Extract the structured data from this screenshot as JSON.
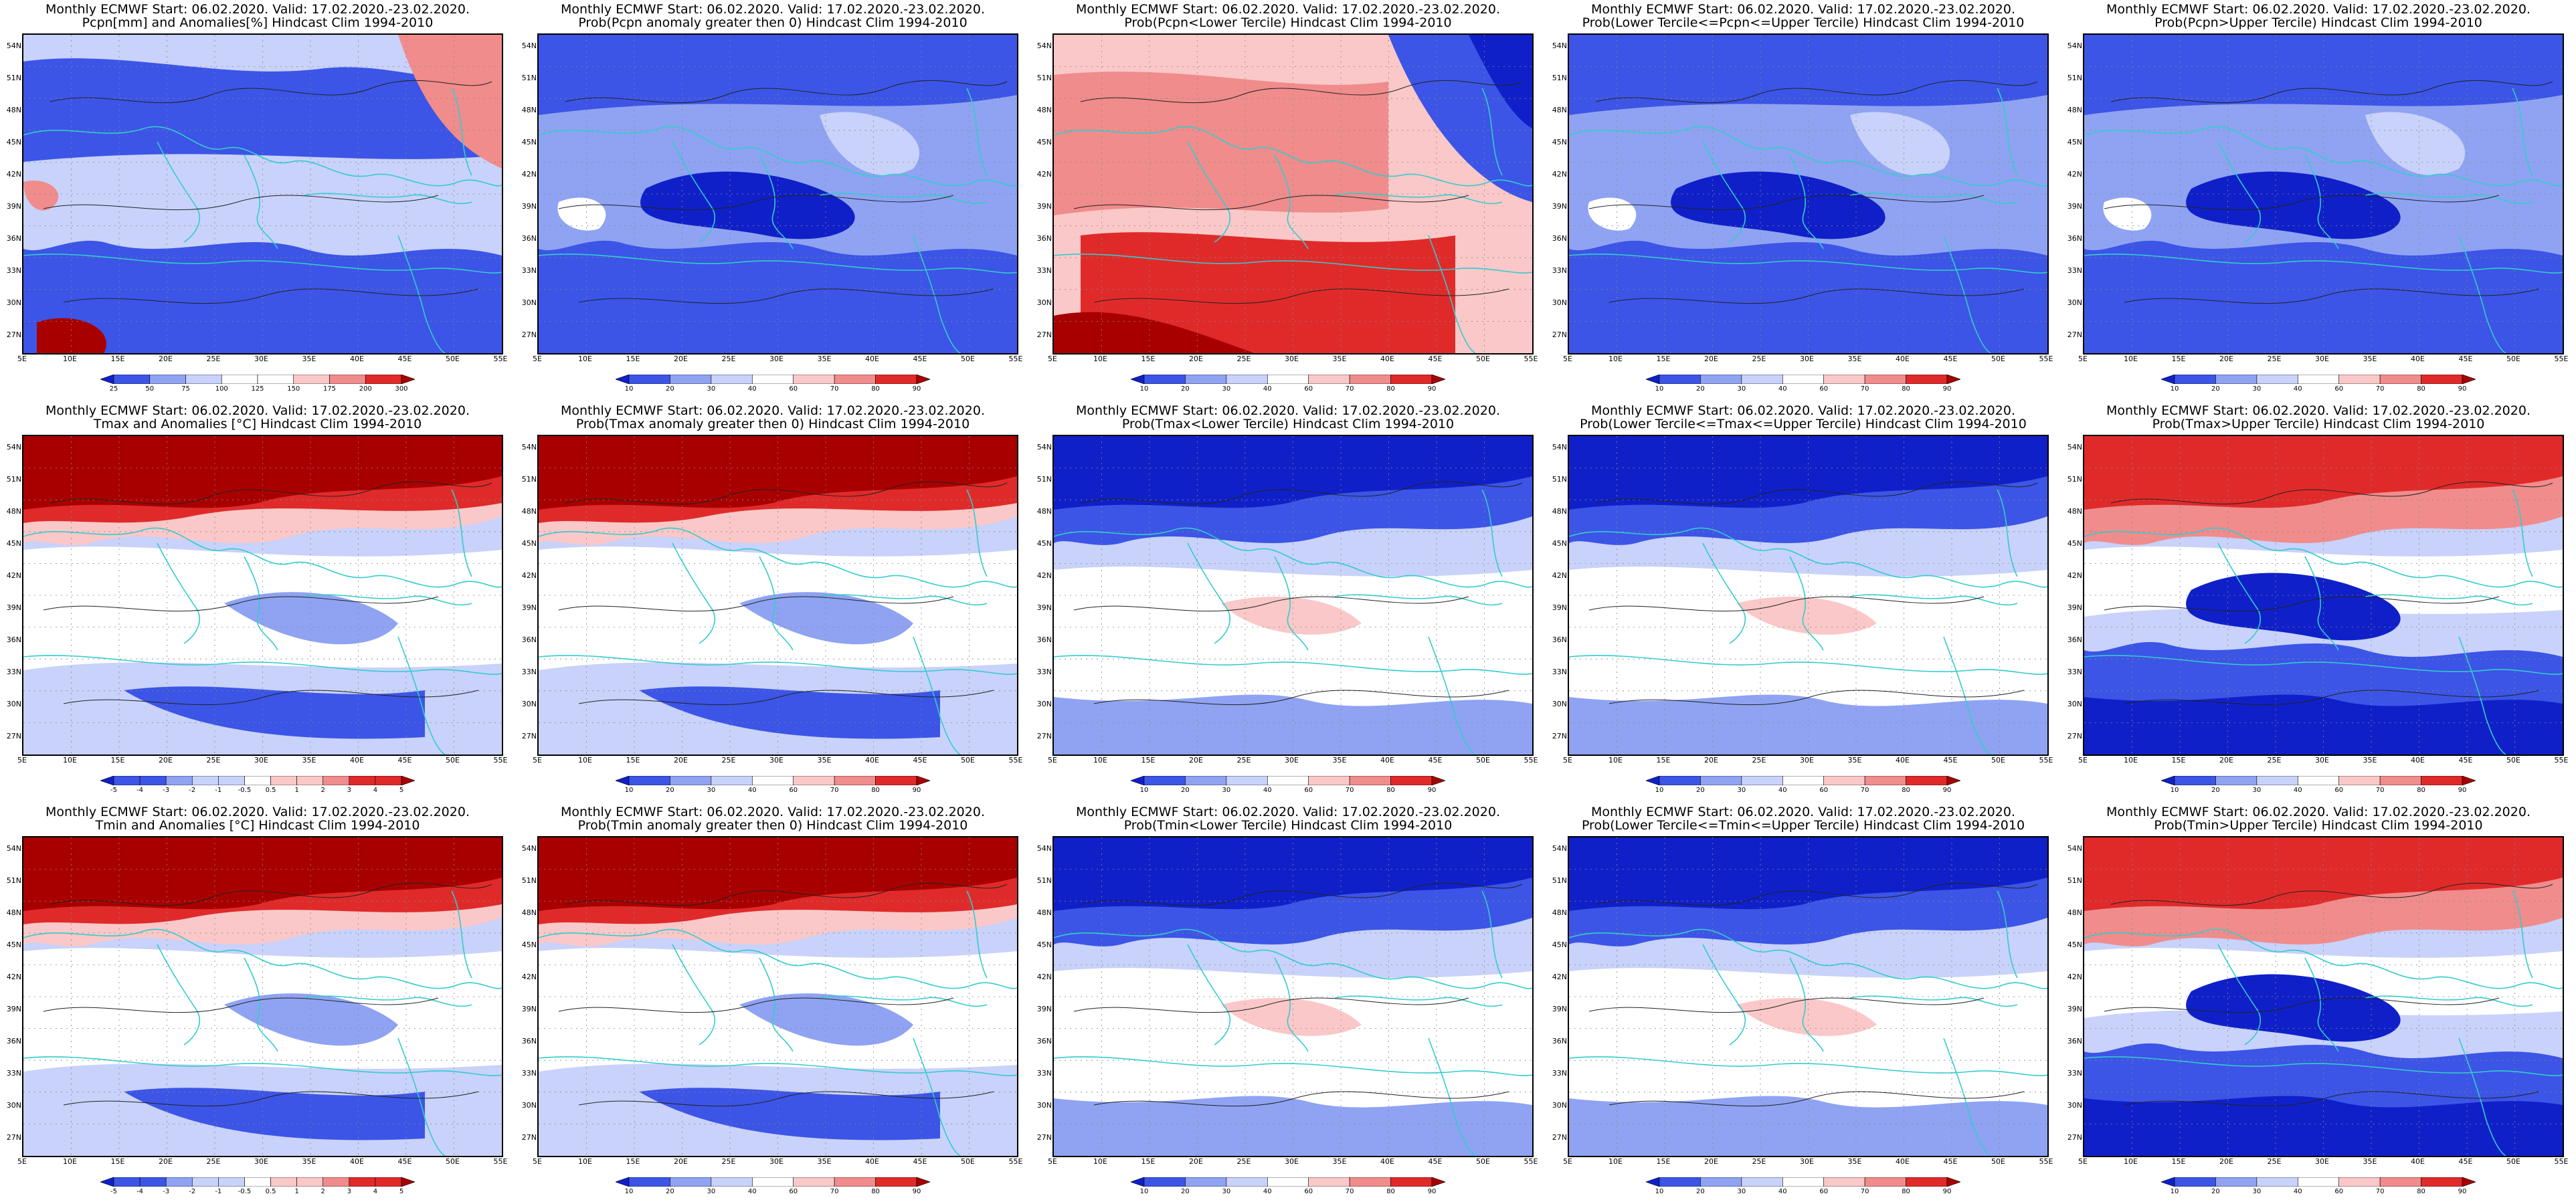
{
  "header_line": "Monthly ECMWF Start: 06.02.2020. Valid: 17.02.2020.-23.02.2020.",
  "lat_labels": [
    "54N",
    "51N",
    "48N",
    "45N",
    "42N",
    "39N",
    "36N",
    "33N",
    "30N",
    "27N"
  ],
  "lon_labels": [
    "5E",
    "10E",
    "15E",
    "20E",
    "25E",
    "30E",
    "35E",
    "40E",
    "45E",
    "50E",
    "55E"
  ],
  "colors": {
    "deep_blue": "#1020c8",
    "blue": "#3c55e6",
    "mid_blue": "#8fa3f2",
    "light_blue": "#c8d2fa",
    "white": "#ffffff",
    "light_red": "#fac8c8",
    "mid_red": "#f08c8c",
    "red": "#e02a2a",
    "deep_red": "#a80000",
    "coast": "#33cccc"
  },
  "scales": {
    "prob": [
      "10",
      "20",
      "30",
      "40",
      "60",
      "70",
      "80",
      "90"
    ],
    "pcpn": [
      "25",
      "50",
      "75",
      "100",
      "125",
      "150",
      "175",
      "200",
      "300"
    ],
    "temp": [
      "-5",
      "-4",
      "-3",
      "-2",
      "-1",
      "-0.5",
      "0.5",
      "1",
      "2",
      "3",
      "4",
      "5"
    ]
  },
  "panels": [
    {
      "row": 0,
      "col": 0,
      "title": "Pcpn[mm] and Anomalies[%] Hindcast Clim 1994-2010",
      "scale": "pcpn",
      "theme": "pcpn_anom"
    },
    {
      "row": 0,
      "col": 1,
      "title": "Prob(Pcpn anomaly greater then 0) Hindcast Clim 1994-2010",
      "scale": "prob",
      "theme": "blue"
    },
    {
      "row": 0,
      "col": 2,
      "title": "Prob(Pcpn<Lower Tercile) Hindcast Clim 1994-2010",
      "scale": "prob",
      "theme": "red_center"
    },
    {
      "row": 0,
      "col": 3,
      "title": "Prob(Lower Tercile<=Pcpn<=Upper Tercile) Hindcast Clim 1994-2010",
      "scale": "prob",
      "theme": "blue"
    },
    {
      "row": 0,
      "col": 4,
      "title": "Prob(Pcpn>Upper Tercile) Hindcast Clim 1994-2010",
      "scale": "prob",
      "theme": "blue"
    },
    {
      "row": 1,
      "col": 0,
      "title": "Tmax and Anomalies [°C] Hindcast Clim 1994-2010",
      "scale": "temp",
      "theme": "north_red"
    },
    {
      "row": 1,
      "col": 1,
      "title": "Prob(Tmax anomaly greater then 0) Hindcast Clim 1994-2010",
      "scale": "prob",
      "theme": "north_red"
    },
    {
      "row": 1,
      "col": 2,
      "title": "Prob(Tmax<Lower Tercile) Hindcast Clim 1994-2010",
      "scale": "prob",
      "theme": "north_blue"
    },
    {
      "row": 1,
      "col": 3,
      "title": "Prob(Lower Tercile<=Tmax<=Upper Tercile) Hindcast Clim 1994-2010",
      "scale": "prob",
      "theme": "north_blue"
    },
    {
      "row": 1,
      "col": 4,
      "title": "Prob(Tmax>Upper Tercile) Hindcast Clim 1994-2010",
      "scale": "prob",
      "theme": "north_red_south_blue"
    },
    {
      "row": 2,
      "col": 0,
      "title": "Tmin and Anomalies [°C] Hindcast Clim 1994-2010",
      "scale": "temp",
      "theme": "north_red"
    },
    {
      "row": 2,
      "col": 1,
      "title": "Prob(Tmin anomaly greater then 0) Hindcast Clim 1994-2010",
      "scale": "prob",
      "theme": "north_red"
    },
    {
      "row": 2,
      "col": 2,
      "title": "Prob(Tmin<Lower Tercile) Hindcast Clim 1994-2010",
      "scale": "prob",
      "theme": "north_blue"
    },
    {
      "row": 2,
      "col": 3,
      "title": "Prob(Lower Tercile<=Tmin<=Upper Tercile) Hindcast Clim 1994-2010",
      "scale": "prob",
      "theme": "north_blue"
    },
    {
      "row": 2,
      "col": 4,
      "title": "Prob(Tmin>Upper Tercile) Hindcast Clim 1994-2010",
      "scale": "prob",
      "theme": "north_red_south_blue"
    }
  ]
}
